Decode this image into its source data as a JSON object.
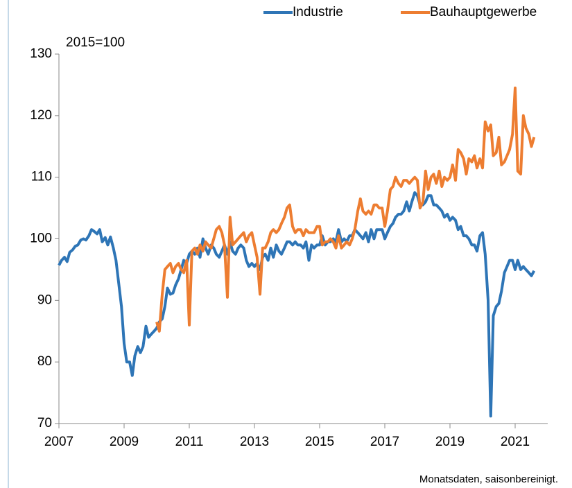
{
  "chart_data": {
    "type": "line",
    "annotations": [
      "2015=100",
      "Monatsdaten, saisonbereinigt."
    ],
    "xlim": [
      2007,
      2022
    ],
    "xticks": [
      2007,
      2009,
      2011,
      2013,
      2015,
      2017,
      2019,
      2021
    ],
    "ylim": [
      70,
      130
    ],
    "yticks": [
      70,
      80,
      90,
      100,
      110,
      120,
      130
    ],
    "legend": "top-right",
    "x": [
      2007,
      2007.08,
      2007.17,
      2007.25,
      2007.33,
      2007.42,
      2007.5,
      2007.58,
      2007.67,
      2007.75,
      2007.83,
      2007.92,
      2008,
      2008.08,
      2008.17,
      2008.25,
      2008.33,
      2008.42,
      2008.5,
      2008.58,
      2008.67,
      2008.75,
      2008.83,
      2008.92,
      2009,
      2009.08,
      2009.17,
      2009.25,
      2009.33,
      2009.42,
      2009.5,
      2009.58,
      2009.67,
      2009.75,
      2009.83,
      2009.92,
      2010,
      2010.08,
      2010.17,
      2010.25,
      2010.33,
      2010.42,
      2010.5,
      2010.58,
      2010.67,
      2010.75,
      2010.83,
      2010.92,
      2011,
      2011.08,
      2011.17,
      2011.25,
      2011.33,
      2011.42,
      2011.5,
      2011.58,
      2011.67,
      2011.75,
      2011.83,
      2011.92,
      2012,
      2012.08,
      2012.17,
      2012.25,
      2012.33,
      2012.42,
      2012.5,
      2012.58,
      2012.67,
      2012.75,
      2012.83,
      2012.92,
      2013,
      2013.08,
      2013.17,
      2013.25,
      2013.33,
      2013.42,
      2013.5,
      2013.58,
      2013.67,
      2013.75,
      2013.83,
      2013.92,
      2014,
      2014.08,
      2014.17,
      2014.25,
      2014.33,
      2014.42,
      2014.5,
      2014.58,
      2014.67,
      2014.75,
      2014.83,
      2014.92,
      2015,
      2015.08,
      2015.17,
      2015.25,
      2015.33,
      2015.42,
      2015.5,
      2015.58,
      2015.67,
      2015.75,
      2015.83,
      2015.92,
      2016,
      2016.08,
      2016.17,
      2016.25,
      2016.33,
      2016.42,
      2016.5,
      2016.58,
      2016.67,
      2016.75,
      2016.83,
      2016.92,
      2017,
      2017.08,
      2017.17,
      2017.25,
      2017.33,
      2017.42,
      2017.5,
      2017.58,
      2017.67,
      2017.75,
      2017.83,
      2017.92,
      2018,
      2018.08,
      2018.17,
      2018.25,
      2018.33,
      2018.42,
      2018.5,
      2018.58,
      2018.67,
      2018.75,
      2018.83,
      2018.92,
      2019,
      2019.08,
      2019.17,
      2019.25,
      2019.33,
      2019.42,
      2019.5,
      2019.58,
      2019.67,
      2019.75,
      2019.83,
      2019.92,
      2020,
      2020.08,
      2020.17,
      2020.25,
      2020.33,
      2020.42,
      2020.5,
      2020.58,
      2020.67,
      2020.75,
      2020.83,
      2020.92,
      2021,
      2021.08,
      2021.17,
      2021.25,
      2021.33,
      2021.42,
      2021.5,
      2021.58
    ],
    "series": [
      {
        "name": "Industrie",
        "color": "#2e75b6",
        "values": [
          95.7,
          96.5,
          97,
          96.3,
          97.8,
          98.2,
          98.8,
          99,
          99.8,
          100,
          99.8,
          100.5,
          101.5,
          101.2,
          100.8,
          101.5,
          99.5,
          100.2,
          99,
          100.3,
          98.5,
          96.5,
          93,
          89,
          83,
          80,
          80,
          77.8,
          81,
          82.5,
          81.5,
          82.5,
          85.8,
          84,
          84.5,
          85,
          85.5,
          86.5,
          87,
          89,
          92,
          91,
          91.2,
          92.5,
          93.5,
          95,
          96.5,
          96,
          97.5,
          98,
          97.5,
          98.5,
          97,
          100,
          98.5,
          97.5,
          99,
          98.5,
          97.5,
          97,
          98,
          99,
          97.5,
          99.5,
          98,
          97.5,
          98.5,
          99,
          98.5,
          96.5,
          95.5,
          96,
          95.5,
          96,
          95,
          97,
          97.5,
          96.5,
          98.5,
          97,
          99,
          98,
          97.5,
          98.5,
          99.5,
          99.5,
          99,
          99.5,
          99,
          99,
          98.5,
          99.5,
          96.5,
          99,
          98.5,
          99,
          99,
          100.5,
          99,
          99.5,
          99.5,
          100,
          99.5,
          101.5,
          99.5,
          100,
          99.5,
          100.5,
          100.5,
          101.5,
          101,
          100.5,
          100,
          101,
          99.5,
          101.5,
          100,
          101.5,
          101.5,
          101.5,
          100,
          101,
          102,
          102.5,
          103.5,
          104,
          104,
          104.5,
          106,
          104.5,
          106,
          107.5,
          107,
          105.5,
          105.5,
          106,
          107,
          107,
          105.5,
          105.5,
          105,
          104.5,
          103.5,
          104,
          103,
          103.5,
          103,
          101.5,
          102,
          100.5,
          100.5,
          100,
          99,
          99,
          98,
          100.5,
          101,
          97.5,
          90,
          71.2,
          87.5,
          89,
          89.5,
          91.5,
          94.5,
          95.5,
          96.5,
          96.5,
          95,
          96.5,
          95,
          95.5,
          95,
          94.5,
          94,
          94.8
        ]
      },
      {
        "name": "Bauhauptgewerbe",
        "color": "#ed7d31",
        "values": [
          null,
          null,
          null,
          null,
          null,
          null,
          null,
          null,
          null,
          null,
          null,
          null,
          null,
          null,
          null,
          null,
          null,
          null,
          null,
          null,
          null,
          null,
          null,
          null,
          null,
          null,
          null,
          null,
          null,
          null,
          null,
          null,
          null,
          null,
          null,
          null,
          86.5,
          85,
          91,
          95,
          95.5,
          96,
          94.5,
          95.5,
          96,
          95,
          94.5,
          96.5,
          86,
          98,
          98.5,
          97.5,
          99,
          98,
          99.5,
          99,
          98.5,
          100,
          101.5,
          102,
          101,
          99,
          90.5,
          103.5,
          99,
          99.5,
          100,
          100.5,
          101,
          99.5,
          100.5,
          101,
          99,
          97,
          91,
          98.5,
          98.5,
          99.5,
          101,
          101.5,
          101,
          101.5,
          102.5,
          103.5,
          105,
          105.5,
          102,
          101,
          101.5,
          101.5,
          100.5,
          101.5,
          101,
          101,
          101,
          102,
          102,
          99,
          99.5,
          99.5,
          100,
          99.5,
          98.5,
          100.5,
          98.5,
          99,
          99.5,
          99,
          100,
          101.5,
          104.5,
          106.5,
          104.5,
          104,
          104.5,
          104,
          105.5,
          105.5,
          105,
          105,
          102,
          104.5,
          108,
          108.5,
          110,
          109,
          108.5,
          109.5,
          109.5,
          109,
          109.5,
          110,
          109.5,
          105,
          106,
          111,
          108,
          110,
          110.5,
          109,
          111,
          108.5,
          110,
          109.5,
          110,
          112,
          109.5,
          114.5,
          114,
          113,
          110.5,
          113,
          112.5,
          113.5,
          111.5,
          113,
          111.5,
          119,
          117.5,
          118.5,
          113.5,
          114,
          116.5,
          112,
          112.5,
          113.5,
          114.5,
          117,
          124.5,
          111,
          110.5,
          120,
          118,
          117,
          115,
          116.5
        ]
      }
    ]
  }
}
